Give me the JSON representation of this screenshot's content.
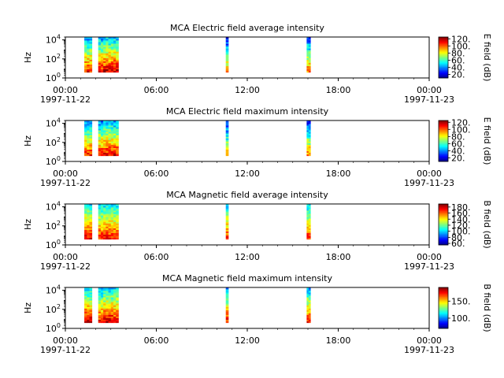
{
  "chart_data": [
    {
      "type": "heatmap",
      "title": "MCA  Electric field average intensity",
      "ylabel": "Hz",
      "yscale": "log",
      "ylim": [
        1,
        20000
      ],
      "y_ticks": [
        {
          "exp": "0",
          "value": 1
        },
        {
          "exp": "2",
          "value": 100
        },
        {
          "exp": "4",
          "value": 10000
        }
      ],
      "xlim": [
        "1997-11-22T00:00",
        "1997-11-23T00:00"
      ],
      "x_ticks": [
        "00:00",
        "06:00",
        "12:00",
        "18:00",
        "00:00"
      ],
      "x_date_start": "1997-11-22",
      "x_date_end": "1997-11-23",
      "colorbar_label": "E field (dB)",
      "colorbar_ticks": [
        "20.",
        "40.",
        "60.",
        "80.",
        "100.",
        "120."
      ],
      "colorbar_range": [
        10,
        125
      ],
      "segments": [
        {
          "start": "01:15",
          "end": "01:45",
          "base_level": 65
        },
        {
          "start": "02:10",
          "end": "02:30",
          "base_level": 68
        },
        {
          "start": "02:30",
          "end": "03:30",
          "base_level": 72
        },
        {
          "start": "10:35",
          "end": "10:45",
          "base_level": 50
        },
        {
          "start": "15:55",
          "end": "16:10",
          "base_level": 55
        }
      ]
    },
    {
      "type": "heatmap",
      "title": "MCA  Electric field maximum intensity",
      "ylabel": "Hz",
      "yscale": "log",
      "ylim": [
        1,
        20000
      ],
      "y_ticks": [
        {
          "exp": "0",
          "value": 1
        },
        {
          "exp": "2",
          "value": 100
        },
        {
          "exp": "4",
          "value": 10000
        }
      ],
      "xlim": [
        "1997-11-22T00:00",
        "1997-11-23T00:00"
      ],
      "x_ticks": [
        "00:00",
        "06:00",
        "12:00",
        "18:00",
        "00:00"
      ],
      "x_date_start": "1997-11-22",
      "x_date_end": "1997-11-23",
      "colorbar_label": "E field (dB)",
      "colorbar_ticks": [
        "20.",
        "40.",
        "60.",
        "80.",
        "100.",
        "120."
      ],
      "colorbar_range": [
        10,
        125
      ],
      "segments": [
        {
          "start": "01:15",
          "end": "01:45",
          "base_level": 62
        },
        {
          "start": "02:10",
          "end": "02:30",
          "base_level": 65
        },
        {
          "start": "02:30",
          "end": "03:30",
          "base_level": 68
        },
        {
          "start": "10:35",
          "end": "10:45",
          "base_level": 48
        },
        {
          "start": "15:55",
          "end": "16:10",
          "base_level": 52
        }
      ]
    },
    {
      "type": "heatmap",
      "title": "MCA  Magnetic field average intensity",
      "ylabel": "Hz",
      "yscale": "log",
      "ylim": [
        1,
        20000
      ],
      "y_ticks": [
        {
          "exp": "0",
          "value": 1
        },
        {
          "exp": "2",
          "value": 100
        },
        {
          "exp": "4",
          "value": 10000
        }
      ],
      "xlim": [
        "1997-11-22T00:00",
        "1997-11-23T00:00"
      ],
      "x_ticks": [
        "00:00",
        "06:00",
        "12:00",
        "18:00",
        "00:00"
      ],
      "x_date_start": "1997-11-22",
      "x_date_end": "1997-11-23",
      "colorbar_label": "B field (dB)",
      "colorbar_ticks": [
        "60.",
        "80.",
        "100.",
        "120.",
        "140.",
        "160.",
        "180."
      ],
      "colorbar_range": [
        55,
        190
      ],
      "segments": [
        {
          "start": "01:15",
          "end": "01:45",
          "base_level": 130
        },
        {
          "start": "02:10",
          "end": "02:30",
          "base_level": 125
        },
        {
          "start": "02:30",
          "end": "03:30",
          "base_level": 128
        },
        {
          "start": "10:35",
          "end": "10:45",
          "base_level": 125
        },
        {
          "start": "15:55",
          "end": "16:10",
          "base_level": 125
        }
      ]
    },
    {
      "type": "heatmap",
      "title": "MCA  Magnetic field maximum intensity",
      "ylabel": "Hz",
      "yscale": "log",
      "ylim": [
        1,
        20000
      ],
      "y_ticks": [
        {
          "exp": "0",
          "value": 1
        },
        {
          "exp": "2",
          "value": 100
        },
        {
          "exp": "4",
          "value": 10000
        }
      ],
      "xlim": [
        "1997-11-22T00:00",
        "1997-11-23T00:00"
      ],
      "x_ticks": [
        "00:00",
        "06:00",
        "12:00",
        "18:00",
        "00:00"
      ],
      "x_date_start": "1997-11-22",
      "x_date_end": "1997-11-23",
      "colorbar_label": "B field (dB)",
      "colorbar_ticks": [
        "100.",
        "150."
      ],
      "colorbar_range": [
        70,
        190
      ],
      "segments": [
        {
          "start": "01:15",
          "end": "01:45",
          "base_level": 135
        },
        {
          "start": "02:10",
          "end": "02:30",
          "base_level": 130
        },
        {
          "start": "02:30",
          "end": "03:30",
          "base_level": 135
        },
        {
          "start": "10:35",
          "end": "10:45",
          "base_level": 130
        },
        {
          "start": "15:55",
          "end": "16:10",
          "base_level": 130
        }
      ]
    }
  ]
}
